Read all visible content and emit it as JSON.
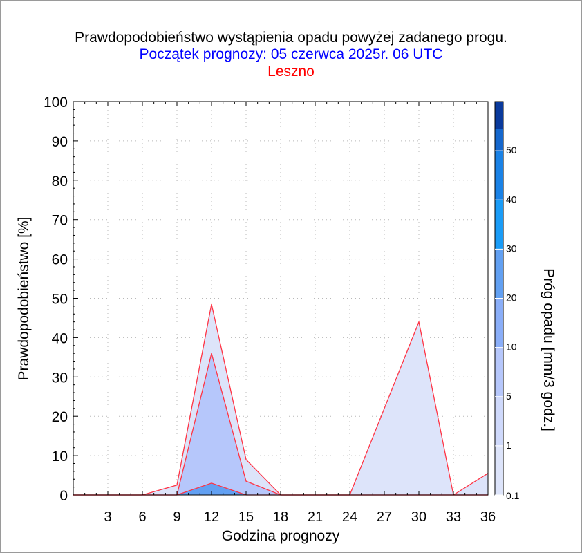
{
  "header": {
    "title": "Prawdopodobieństwo wystąpienia opadu powyżej zadanego progu.",
    "subtitle": "Początek prognozy: 05 czerwca 2025r. 06 UTC",
    "location": "Leszno"
  },
  "colors": {
    "title": "#000000",
    "subtitle": "#0000ff",
    "location": "#ff0000",
    "series_line": "#ff3344",
    "scale": [
      "#dde4fa",
      "#cfd9fb",
      "#b6c7fb",
      "#8aaef8",
      "#62a0f2",
      "#1a9cf7",
      "#1a82e6",
      "#1567cd",
      "#0f50b5",
      "#0a3a9c"
    ]
  },
  "chart_data": {
    "type": "area",
    "title": "Prawdopodobieństwo wystąpienia opadu powyżej zadanego progu.",
    "xlabel": "Godzina prognozy",
    "ylabel": "Prawdopodobieństwo [%]",
    "colorbar_label": "Próg opadu [mm/3 godz.]",
    "xlim": [
      0,
      36
    ],
    "ylim": [
      0,
      100
    ],
    "x_ticks": [
      "3",
      "6",
      "9",
      "12",
      "15",
      "18",
      "21",
      "24",
      "27",
      "30",
      "33",
      "36"
    ],
    "y_ticks": [
      "0",
      "10",
      "20",
      "30",
      "40",
      "50",
      "60",
      "70",
      "80",
      "90",
      "100"
    ],
    "grid": true,
    "x": [
      0,
      3,
      6,
      9,
      12,
      15,
      18,
      21,
      24,
      27,
      30,
      33,
      36
    ],
    "series": [
      {
        "threshold": "0.1",
        "values": [
          0,
          0,
          0,
          2.5,
          48.5,
          9,
          0,
          0,
          0,
          22,
          44,
          0,
          5.5
        ]
      },
      {
        "threshold": "1",
        "values": [
          0,
          0,
          0,
          0,
          36,
          3.5,
          0,
          0,
          0,
          0,
          0,
          0,
          0
        ]
      },
      {
        "threshold": "5",
        "values": [
          0,
          0,
          0,
          0,
          3,
          0,
          0,
          0,
          0,
          0,
          0,
          0,
          0
        ]
      }
    ],
    "colorbar": {
      "labels": [
        "0.1",
        "1",
        "5",
        "10",
        "20",
        "30",
        "40",
        "50"
      ],
      "bands": 10
    }
  }
}
